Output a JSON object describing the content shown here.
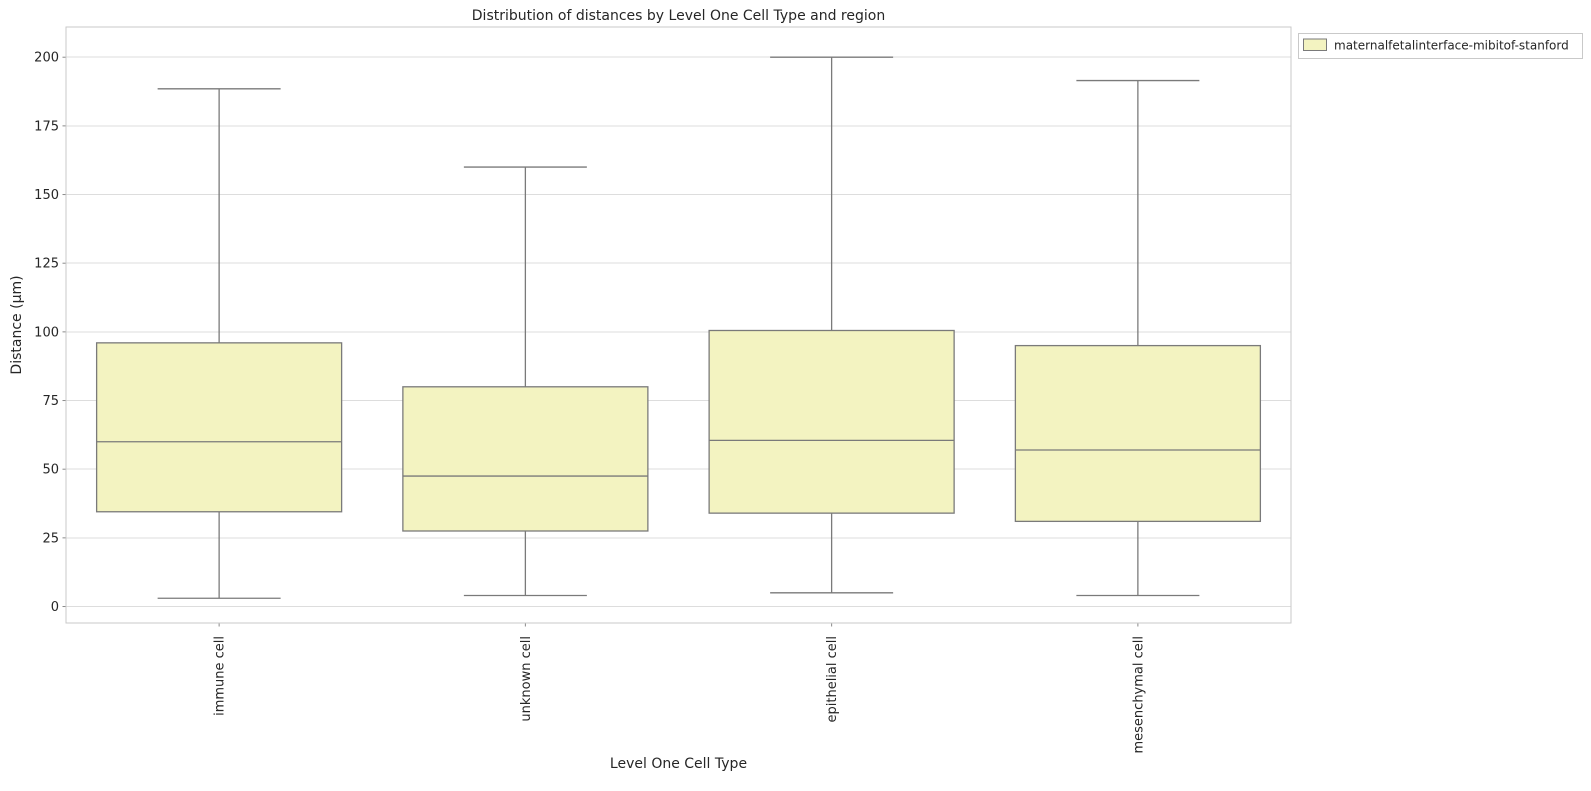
{
  "chart_data": {
    "type": "boxplot",
    "title": "Distribution of distances by Level One Cell Type and region",
    "xlabel": "Level One Cell Type",
    "ylabel": "Distance (μm)",
    "categories": [
      "immune cell",
      "unknown cell",
      "epithelial cell",
      "mesenchymal cell"
    ],
    "yticks": [
      0,
      25,
      50,
      75,
      100,
      125,
      150,
      175,
      200
    ],
    "ylim": [
      -6,
      211
    ],
    "grid": true,
    "legend_position": "upper-right-outside",
    "series": [
      {
        "name": "maternalfetalinterface-mibitof-stanford",
        "boxes": [
          {
            "category": "immune cell",
            "whisker_low": 3,
            "q1": 34.5,
            "median": 60,
            "q3": 96,
            "whisker_high": 188.5
          },
          {
            "category": "unknown cell",
            "whisker_low": 4,
            "q1": 27.5,
            "median": 47.5,
            "q3": 80,
            "whisker_high": 160
          },
          {
            "category": "epithelial cell",
            "whisker_low": 5,
            "q1": 34,
            "median": 60.5,
            "q3": 100.5,
            "whisker_high": 200
          },
          {
            "category": "mesenchymal cell",
            "whisker_low": 4,
            "q1": 31,
            "median": 57,
            "q3": 95,
            "whisker_high": 191.5
          }
        ]
      }
    ],
    "colors": {
      "box_fill": "#f3f3c1",
      "box_edge": "#7a7a7a",
      "median": "#7a7a7a",
      "whisker": "#7a7a7a",
      "tick": "#8a8a8a",
      "grid": "#dddddd",
      "spine": "#c9c9c9",
      "text": "#262626",
      "background": "#ffffff"
    }
  }
}
